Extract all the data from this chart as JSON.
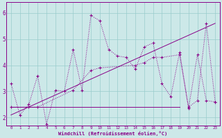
{
  "xlabel": "Windchill (Refroidissement éolien,°C)",
  "bg_color": "#cce8e8",
  "line_color": "#880088",
  "grid_color": "#99cccc",
  "x_ticks": [
    0,
    1,
    2,
    3,
    4,
    5,
    6,
    7,
    8,
    9,
    10,
    11,
    12,
    13,
    14,
    15,
    16,
    17,
    18,
    19,
    20,
    21,
    22,
    23
  ],
  "y_ticks": [
    2,
    3,
    4,
    5,
    6
  ],
  "xlim": [
    -0.5,
    23.5
  ],
  "ylim": [
    1.7,
    6.4
  ],
  "series1_x": [
    0,
    1,
    2,
    3,
    4,
    5,
    6,
    7,
    8,
    9,
    10,
    11,
    12,
    13,
    14,
    15,
    16,
    17,
    18,
    19,
    20,
    21,
    22,
    23
  ],
  "series1_y": [
    3.3,
    2.1,
    2.5,
    3.6,
    1.75,
    3.05,
    3.0,
    4.6,
    3.05,
    5.9,
    5.7,
    4.6,
    4.35,
    4.3,
    3.85,
    4.7,
    4.85,
    3.3,
    2.8,
    4.5,
    2.4,
    2.65,
    5.6,
    2.6
  ],
  "series2_x": [
    0,
    19
  ],
  "series2_y": [
    2.4,
    2.4
  ],
  "series3_x": [
    0,
    23
  ],
  "series3_y": [
    2.1,
    5.6
  ],
  "series4_x": [
    0,
    2,
    3,
    7,
    9,
    10,
    14,
    15,
    16,
    17,
    19,
    20,
    21,
    22,
    23
  ],
  "series4_y": [
    2.4,
    2.4,
    2.4,
    3.05,
    3.8,
    3.9,
    4.0,
    4.1,
    4.3,
    4.3,
    4.4,
    2.35,
    4.4,
    2.65,
    2.6
  ]
}
